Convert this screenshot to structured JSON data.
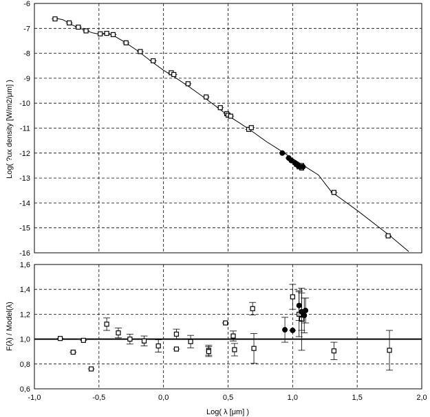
{
  "chart_data": [
    {
      "type": "scatter",
      "panel": "top",
      "ylabel": "Log( ?ux density [W/m2/μm] )",
      "xlim": [
        -1.0,
        2.0
      ],
      "ylim": [
        -16,
        -6
      ],
      "yticks": [
        "-6",
        "-7",
        "-8",
        "-9",
        "-10",
        "-11",
        "-12",
        "-13",
        "-14",
        "-15",
        "-16"
      ],
      "grid": true,
      "model_curve": {
        "x": [
          -0.85,
          -0.78,
          -0.7,
          -0.62,
          -0.55,
          -0.5,
          -0.45,
          -0.4,
          -0.3,
          -0.2,
          -0.1,
          0.0,
          0.1,
          0.2,
          0.3,
          0.4,
          0.5,
          0.6,
          0.7,
          0.8,
          0.9,
          1.0,
          1.1,
          1.2,
          1.3,
          1.5,
          1.75,
          1.9
        ],
        "y": [
          -6.58,
          -6.65,
          -6.88,
          -7.05,
          -7.18,
          -7.23,
          -7.22,
          -7.25,
          -7.55,
          -7.9,
          -8.3,
          -8.68,
          -9.0,
          -9.35,
          -9.72,
          -10.1,
          -10.5,
          -10.83,
          -11.18,
          -11.55,
          -11.88,
          -12.22,
          -12.55,
          -12.88,
          -13.55,
          -14.3,
          -15.3,
          -15.95
        ]
      },
      "series": [
        {
          "marker": "open-square",
          "x": [
            -0.84,
            -0.73,
            -0.66,
            -0.6,
            -0.49,
            -0.44,
            -0.39,
            -0.29,
            -0.18,
            -0.08,
            0.06,
            0.08,
            0.19,
            0.33,
            0.44,
            0.49,
            0.5,
            0.52,
            0.66,
            0.68,
            1.03,
            1.05,
            1.07,
            1.07,
            1.32,
            1.74
          ],
          "y": [
            -6.62,
            -6.78,
            -6.95,
            -7.1,
            -7.22,
            -7.2,
            -7.25,
            -7.58,
            -7.93,
            -8.3,
            -8.78,
            -8.85,
            -9.22,
            -9.75,
            -10.18,
            -10.42,
            -10.48,
            -10.52,
            -11.05,
            -10.98,
            -12.45,
            -12.55,
            -12.5,
            -12.6,
            -13.58,
            -15.32
          ]
        },
        {
          "marker": "filled-circle",
          "x": [
            0.92,
            0.97,
            0.99,
            1.02,
            1.04,
            1.06,
            1.08
          ],
          "y": [
            -12.0,
            -12.2,
            -12.3,
            -12.4,
            -12.5,
            -12.55,
            -12.55
          ]
        }
      ]
    },
    {
      "type": "scatter",
      "panel": "bottom",
      "xlabel": "Log( λ [μm] )",
      "ylabel": "F(λ) / Model(λ)",
      "xlim": [
        -1.0,
        2.0
      ],
      "ylim": [
        0.6,
        1.6
      ],
      "xticks": [
        "-1,0",
        "-0,5",
        "0,0",
        "0,5",
        "1,0",
        "1,5",
        "2,0"
      ],
      "yticks": [
        "0,6",
        "0,8",
        "1,0",
        "1,2",
        "1,4",
        "1,6"
      ],
      "reference_line": 1.0,
      "grid": true,
      "series": [
        {
          "marker": "open-square",
          "x": [
            -0.8,
            -0.7,
            -0.62,
            -0.56,
            -0.44,
            -0.35,
            -0.26,
            -0.15,
            -0.04,
            0.1,
            0.1,
            0.21,
            0.35,
            0.35,
            0.48,
            0.54,
            0.55,
            0.69,
            0.7,
            1.0,
            1.05,
            1.07,
            1.32,
            1.75
          ],
          "y": [
            1.005,
            0.895,
            0.99,
            0.76,
            1.12,
            1.05,
            1.0,
            0.985,
            0.945,
            1.04,
            0.92,
            0.98,
            0.91,
            0.9,
            1.13,
            1.025,
            0.915,
            1.245,
            0.925,
            1.34,
            1.2,
            1.16,
            0.905,
            0.91
          ],
          "err": [
            0.0,
            0.0,
            0.0,
            0.0,
            0.05,
            0.04,
            0.04,
            0.04,
            0.05,
            0.04,
            0.0,
            0.05,
            0.04,
            0.04,
            0.0,
            0.04,
            0.05,
            0.05,
            0.12,
            0.1,
            0.18,
            0.25,
            0.07,
            0.16
          ]
        },
        {
          "marker": "filled-circle",
          "x": [
            0.94,
            1.0,
            1.05,
            1.07,
            1.09,
            1.1
          ],
          "y": [
            1.075,
            1.07,
            1.27,
            1.22,
            1.19,
            1.23
          ],
          "err": [
            0.1,
            0.0,
            0.12,
            0.15,
            0.14,
            0.1
          ]
        }
      ]
    }
  ]
}
